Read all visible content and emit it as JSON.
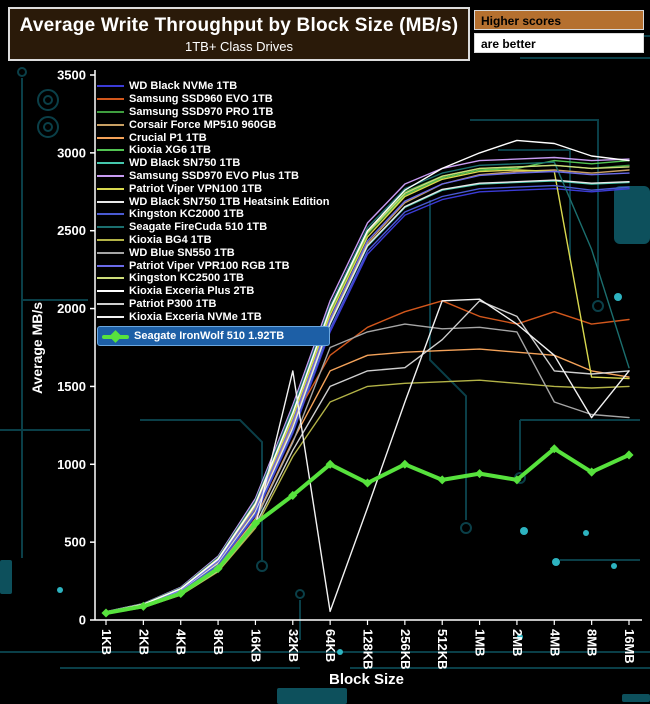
{
  "header": {
    "title": "Average Write Throughput by Block Size (MB/s)",
    "subtitle": "1TB+ Class Drives",
    "badge_top": "Higher scores",
    "badge_bottom": "are better"
  },
  "colors": {
    "background": "#000000",
    "title_box_bg": "#2a1a09",
    "title_box_border": "#dcdcdc",
    "badge_top_bg": "#b5702f",
    "badge_bottom_bg": "#ffffff",
    "axis": "#ffffff",
    "highlight_row_bg": "#1d5fa6",
    "highlight_row_border": "#6aa7e0",
    "circuit_trace": "#0c4650",
    "circuit_fill": "#0d505c",
    "circuit_dot": "#2db3c0"
  },
  "chart_data": {
    "type": "line",
    "title": "Average Write Throughput by Block Size (MB/s)",
    "subtitle": "1TB+ Class Drives",
    "xlabel": "Block Size",
    "ylabel": "Average MB/s",
    "ylim": [
      0,
      3500
    ],
    "yticks": [
      0,
      500,
      1000,
      1500,
      2000,
      2500,
      3000,
      3500
    ],
    "grid": false,
    "legend_position": "top-left-inside",
    "categories": [
      "1KB",
      "2KB",
      "4KB",
      "8KB",
      "16KB",
      "32KB",
      "64KB",
      "128KB",
      "256KB",
      "512KB",
      "1MB",
      "2MB",
      "4MB",
      "8MB",
      "16MB"
    ],
    "series": [
      {
        "name": "WD Black NVMe 1TB",
        "color": "#3b3bd6",
        "highlight": false,
        "values": [
          45,
          90,
          180,
          350,
          670,
          1200,
          1850,
          2350,
          2600,
          2700,
          2750,
          2760,
          2770,
          2750,
          2770
        ]
      },
      {
        "name": "Samsung SSD960 EVO 1TB",
        "color": "#d2571c",
        "highlight": false,
        "values": [
          50,
          100,
          195,
          380,
          720,
          1280,
          1700,
          1880,
          1980,
          2050,
          1950,
          1900,
          1980,
          1900,
          1930
        ]
      },
      {
        "name": "Samsung SSD970 PRO 1TB",
        "color": "#3f9e3f",
        "highlight": false,
        "values": [
          52,
          105,
          205,
          400,
          760,
          1350,
          2000,
          2500,
          2750,
          2850,
          2900,
          2910,
          2920,
          2900,
          2920
        ]
      },
      {
        "name": "Corsair Force MP510 960GB",
        "color": "#c9a063",
        "highlight": false,
        "values": [
          48,
          96,
          190,
          370,
          700,
          1260,
          1920,
          2420,
          2680,
          2800,
          2860,
          2880,
          2890,
          2870,
          2890
        ]
      },
      {
        "name": "Crucial P1 1TB",
        "color": "#f4a259",
        "highlight": false,
        "values": [
          45,
          90,
          175,
          340,
          650,
          1150,
          1600,
          1700,
          1720,
          1730,
          1740,
          1720,
          1700,
          1600,
          1560
        ]
      },
      {
        "name": "Kioxia XG6 1TB",
        "color": "#52c452",
        "highlight": false,
        "values": [
          50,
          100,
          200,
          390,
          740,
          1320,
          1980,
          2480,
          2730,
          2840,
          2890,
          2900,
          2950,
          2930,
          2950
        ]
      },
      {
        "name": "WD Black SN750 1TB",
        "color": "#45c7ad",
        "highlight": false,
        "values": [
          47,
          94,
          185,
          360,
          690,
          1230,
          1900,
          2400,
          2650,
          2760,
          2800,
          2810,
          2820,
          2800,
          2810
        ]
      },
      {
        "name": "Samsung SSD970 EVO Plus 1TB",
        "color": "#c79bf2",
        "highlight": false,
        "values": [
          53,
          106,
          210,
          410,
          780,
          1380,
          2050,
          2550,
          2800,
          2900,
          2950,
          2960,
          2970,
          2950,
          2960
        ]
      },
      {
        "name": "Patriot Viper VPN100 1TB",
        "color": "#d9d94f",
        "highlight": false,
        "values": [
          50,
          100,
          198,
          385,
          730,
          1300,
          1960,
          2460,
          2720,
          2830,
          2880,
          2890,
          2880,
          1560,
          1550
        ]
      },
      {
        "name": "WD Black SN750 1TB Heatsink Edition",
        "color": "#e8e8e8",
        "highlight": false,
        "values": [
          47,
          94,
          186,
          362,
          692,
          1235,
          1905,
          2405,
          2655,
          2765,
          2805,
          2815,
          2825,
          2805,
          2815
        ]
      },
      {
        "name": "Kingston KC2000 1TB",
        "color": "#4a5ad2",
        "highlight": false,
        "values": [
          46,
          92,
          182,
          355,
          680,
          1210,
          1870,
          2370,
          2620,
          2720,
          2770,
          2780,
          2790,
          2760,
          2780
        ]
      },
      {
        "name": "Seagate FireCuda 510 1TB",
        "color": "#1b6f6f",
        "highlight": false,
        "values": [
          52,
          104,
          206,
          402,
          765,
          1360,
          2020,
          2520,
          2770,
          2870,
          2920,
          2930,
          2940,
          2380,
          1620
        ]
      },
      {
        "name": "Kioxia BG4 1TB",
        "color": "#b3b347",
        "highlight": false,
        "values": [
          40,
          80,
          160,
          310,
          590,
          1050,
          1400,
          1500,
          1520,
          1530,
          1540,
          1520,
          1500,
          1490,
          1500
        ]
      },
      {
        "name": "WD Blue SN550 1TB",
        "color": "#a6a6a6",
        "highlight": false,
        "values": [
          44,
          88,
          172,
          335,
          640,
          1140,
          1750,
          1850,
          1900,
          1870,
          1880,
          1850,
          1400,
          1320,
          1300
        ]
      },
      {
        "name": "Patriot Viper VPR100 RGB 1TB",
        "color": "#6a6ae8",
        "highlight": false,
        "values": [
          49,
          98,
          194,
          378,
          718,
          1275,
          1935,
          2435,
          2690,
          2800,
          2855,
          2870,
          2880,
          2860,
          2870
        ]
      },
      {
        "name": "Kingston KC2500 1TB",
        "color": "#cedd7a",
        "highlight": false,
        "values": [
          51,
          102,
          202,
          395,
          750,
          1330,
          1990,
          2490,
          2740,
          2850,
          2900,
          2910,
          2920,
          2900,
          2910
        ]
      },
      {
        "name": "Kioxia Exceria Plus 2TB",
        "color": "#ffffff",
        "highlight": false,
        "values": [
          50,
          100,
          200,
          390,
          745,
          1330,
          2000,
          2500,
          2760,
          2900,
          3000,
          3080,
          3060,
          2980,
          2950
        ]
      },
      {
        "name": "Patriot P300 1TB",
        "color": "#cfcfcf",
        "highlight": false,
        "values": [
          42,
          84,
          165,
          320,
          610,
          1090,
          1500,
          1600,
          1620,
          1800,
          2050,
          1950,
          1600,
          1580,
          1600
        ]
      },
      {
        "name": "Kioxia Exceria NVMe 1TB",
        "color": "#f2f2f2",
        "highlight": false,
        "values": [
          40,
          82,
          163,
          318,
          605,
          1600,
          55,
          720,
          1400,
          2050,
          2060,
          1900,
          1700,
          1300,
          1600
        ]
      },
      {
        "name": "Seagate IronWolf 510 1.92TB",
        "color": "#57e23d",
        "highlight": true,
        "marker": "diamond",
        "values": [
          45,
          88,
          170,
          330,
          620,
          800,
          1000,
          880,
          1000,
          900,
          940,
          900,
          1100,
          950,
          1060
        ]
      }
    ]
  }
}
